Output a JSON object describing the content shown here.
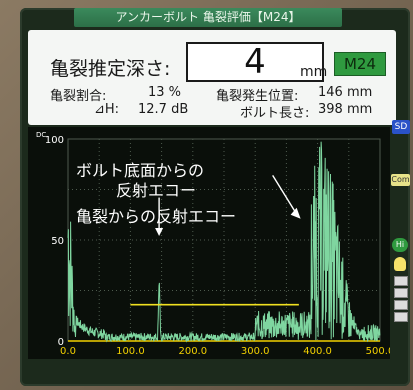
{
  "title": "アンカーボルト 亀裂評価【M24】",
  "depth": {
    "label": "亀裂推定深さ:",
    "value": "4",
    "unit": "mm"
  },
  "size_badge": "M24",
  "stats": {
    "crack_ratio_label": "亀裂割合:",
    "crack_ratio_value": "13 %",
    "dh_label": "⊿H:",
    "dh_value": "12.7 dB",
    "crack_pos_label": "亀裂発生位置:",
    "crack_pos_value": "146 mm",
    "bolt_len_label": "ボルト長さ:",
    "bolt_len_value": "398 mm"
  },
  "side_buttons": {
    "sd": "SD",
    "com": "Com",
    "hi": "Hi"
  },
  "annotations": {
    "bottom_echo_line1": "ボルト底面からの",
    "bottom_echo_line2": "反射エコー",
    "crack_echo": "亀裂からの反射エコー"
  },
  "chart_data": {
    "type": "line",
    "ylabel": "DC",
    "xlim": [
      0,
      500
    ],
    "ylim": [
      0,
      100
    ],
    "x_ticks": [
      "0.0",
      "100.0",
      "200.0",
      "300.0",
      "400.0",
      "500.0"
    ],
    "y_ticks": [
      "0",
      "50",
      "100"
    ],
    "gate_level_y": 18,
    "gate_x": [
      100,
      370
    ],
    "crack_peak": {
      "x": 146,
      "y": 43
    },
    "bottom_echo": {
      "x": 398,
      "y": 100
    },
    "colors": {
      "trace": "#7fd6a0",
      "grid": "#4d5a4d",
      "gate": "#f0e020",
      "axis": "#f2d000"
    }
  }
}
